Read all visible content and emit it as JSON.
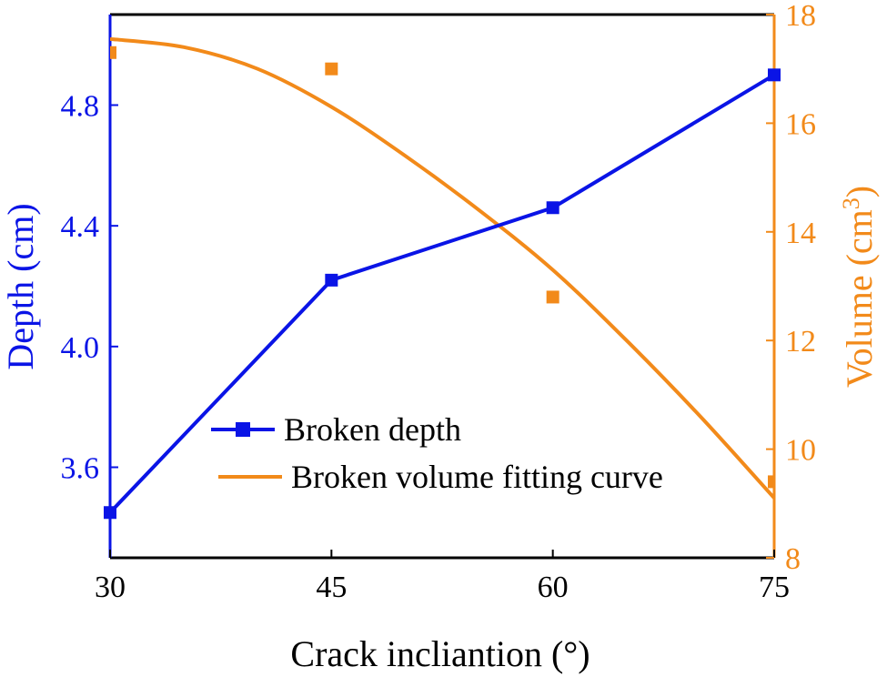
{
  "chart_data": {
    "type": "line",
    "xlabel": "Crack incliantion (°)",
    "ylabel_left": "Depth (cm)",
    "ylabel_right_base": "Volume (cm",
    "ylabel_right_sup": "3",
    "ylabel_right_close": ")",
    "xlim": [
      30,
      75
    ],
    "ylim_left": [
      3.3,
      5.1
    ],
    "ylim_right": [
      8,
      18
    ],
    "x_ticks": [
      30,
      45,
      60,
      75
    ],
    "y_left_ticks": [
      3.6,
      4.0,
      4.4,
      4.8
    ],
    "y_right_ticks": [
      8,
      10,
      12,
      14,
      16,
      18
    ],
    "colors": {
      "depth": "#0a14e6",
      "volume": "#f28a1a",
      "axis": "#000000"
    },
    "grid": false,
    "legend_position": "center-bottom",
    "series": [
      {
        "name": "Broken depth",
        "axis": "left",
        "style": "line-square-markers",
        "x": [
          30,
          45,
          60,
          75
        ],
        "y": [
          3.45,
          4.22,
          4.46,
          4.9
        ]
      },
      {
        "name": "Broken volume fitting curve",
        "axis": "right",
        "style": "curve",
        "x": [
          30,
          35,
          40,
          45,
          50,
          55,
          60,
          65,
          70,
          75
        ],
        "y": [
          17.55,
          17.4,
          17.0,
          16.3,
          15.4,
          14.4,
          13.3,
          12.0,
          10.6,
          9.1
        ]
      },
      {
        "axis": "right",
        "style": "square-markers",
        "x": [
          30,
          45,
          60,
          75
        ],
        "y": [
          17.3,
          17.0,
          12.8,
          9.4
        ]
      }
    ]
  }
}
